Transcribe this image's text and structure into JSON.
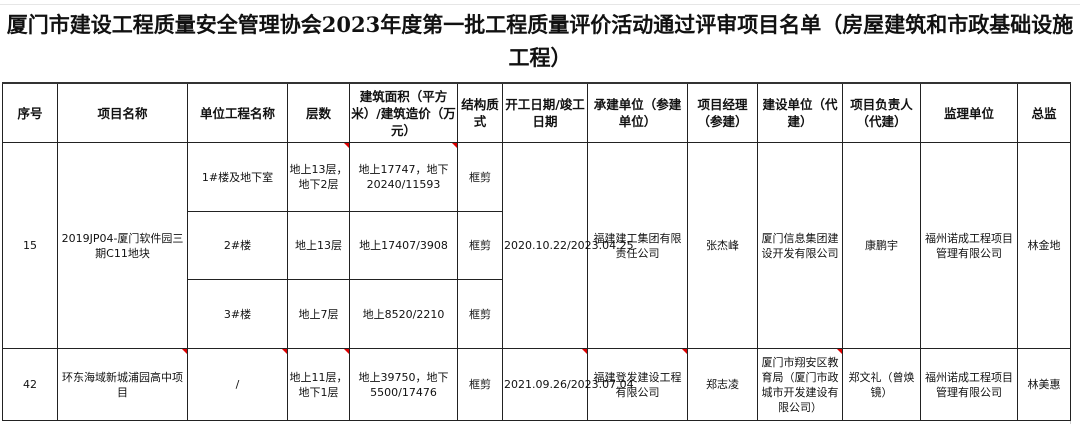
{
  "title": "厦门市建设工程质量安全管理协会2023年度第一批工程质量评价活动通过评审项目名单（房屋建筑和市政基础设施工程）",
  "headers": [
    "序号",
    "项目名称",
    "单位工程名称",
    "层数",
    "建筑面积（平方米）/建筑造价（万元）",
    "结构质式",
    "开工日期/竣工日期",
    "承建单位（参建单位）",
    "项目经理（参建）",
    "建设单位（代建）",
    "项目负责人（代建）",
    "监理单位",
    "总监"
  ],
  "rows": [
    {
      "no": "15",
      "project": "2019JP04-厦门软件园三期C11地块",
      "units": [
        {
          "name": "1#楼及地下室",
          "floors": "地上13层，地下2层",
          "area_cost": "地上17747，地下20240/11593",
          "structure": "框剪"
        },
        {
          "name": "2#楼",
          "floors": "地上13层",
          "area_cost": "地上17407/3908",
          "structure": "框剪"
        },
        {
          "name": "3#楼",
          "floors": "地上7层",
          "area_cost": "地上8520/2210",
          "structure": "框剪"
        }
      ],
      "dates": "2020.10.22/2023.04.25",
      "contractor": "福建建工集团有限责任公司",
      "manager": "张杰峰",
      "owner": "厦门信息集团建设开发有限公司",
      "owner_lead": "康鹏宇",
      "supervisor": "福州诺成工程项目管理有限公司",
      "chief": "林金地"
    },
    {
      "no": "42",
      "project": "环东海域新城浦园高中项目",
      "units": [
        {
          "name": "/",
          "floors": "地上11层，地下1层",
          "area_cost": "地上39750，地下5500/17476",
          "structure": "框剪"
        }
      ],
      "dates": "2021.09.26/2023.07.04",
      "contractor": "福建登发建设工程有限公司",
      "manager": "郑志凌",
      "owner": "厦门市翔安区教育局（厦门市政城市开发建设有限公司）",
      "owner_lead": "郑文礼（曾焕镜）",
      "supervisor": "福州诺成工程项目管理有限公司",
      "chief": "林美惠"
    }
  ],
  "colors": {
    "comment_marker": "#dd0000",
    "border": "#222222"
  }
}
